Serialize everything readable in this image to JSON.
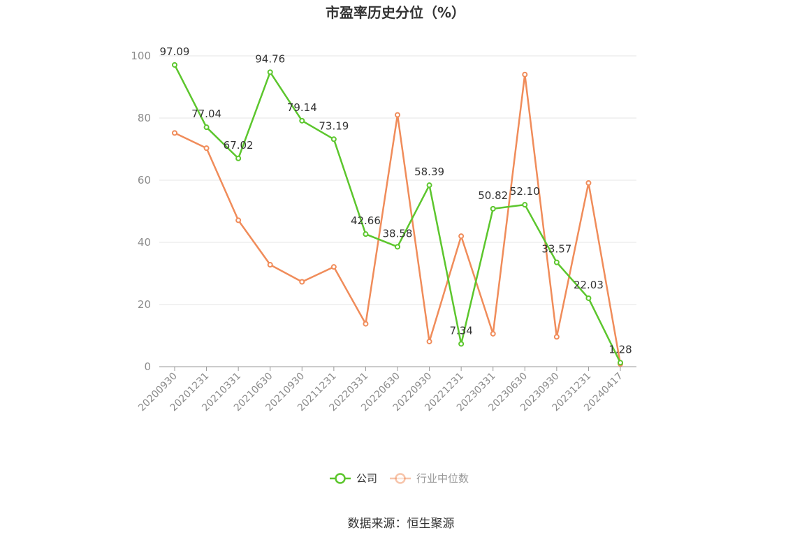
{
  "chart_data": {
    "type": "line",
    "title": "市盈率历史分位（%）",
    "source": "数据来源：恒生聚源",
    "categories": [
      "20200930",
      "20201231",
      "20210331",
      "20210630",
      "20210930",
      "20211231",
      "20220331",
      "20220630",
      "20220930",
      "20221231",
      "20230331",
      "20230630",
      "20230930",
      "20231231",
      "20240417"
    ],
    "ylim": [
      0,
      100
    ],
    "yticks": [
      0,
      20,
      40,
      60,
      80,
      100
    ],
    "grid": true,
    "legend_position": "bottom-center",
    "series": [
      {
        "name": "公司",
        "color": "#5cc62d",
        "show_labels": true,
        "values": [
          97.09,
          77.04,
          67.02,
          94.76,
          79.14,
          73.19,
          42.66,
          38.58,
          58.39,
          7.34,
          50.82,
          52.1,
          33.57,
          22.03,
          1.28
        ],
        "labels": [
          "97.09",
          "77.04",
          "67.02",
          "94.76",
          "79.14",
          "73.19",
          "42.66",
          "38.58",
          "58.39",
          "7.34",
          "50.82",
          "52.10",
          "33.57",
          "22.03",
          "1.28"
        ]
      },
      {
        "name": "行业中位数",
        "color": "#f08c5a",
        "show_labels": false,
        "values": [
          75.2,
          70.3,
          47.1,
          32.8,
          27.3,
          32.1,
          13.8,
          81.0,
          8.1,
          42.0,
          10.6,
          94.0,
          9.6,
          59.1,
          0.9
        ]
      }
    ]
  }
}
